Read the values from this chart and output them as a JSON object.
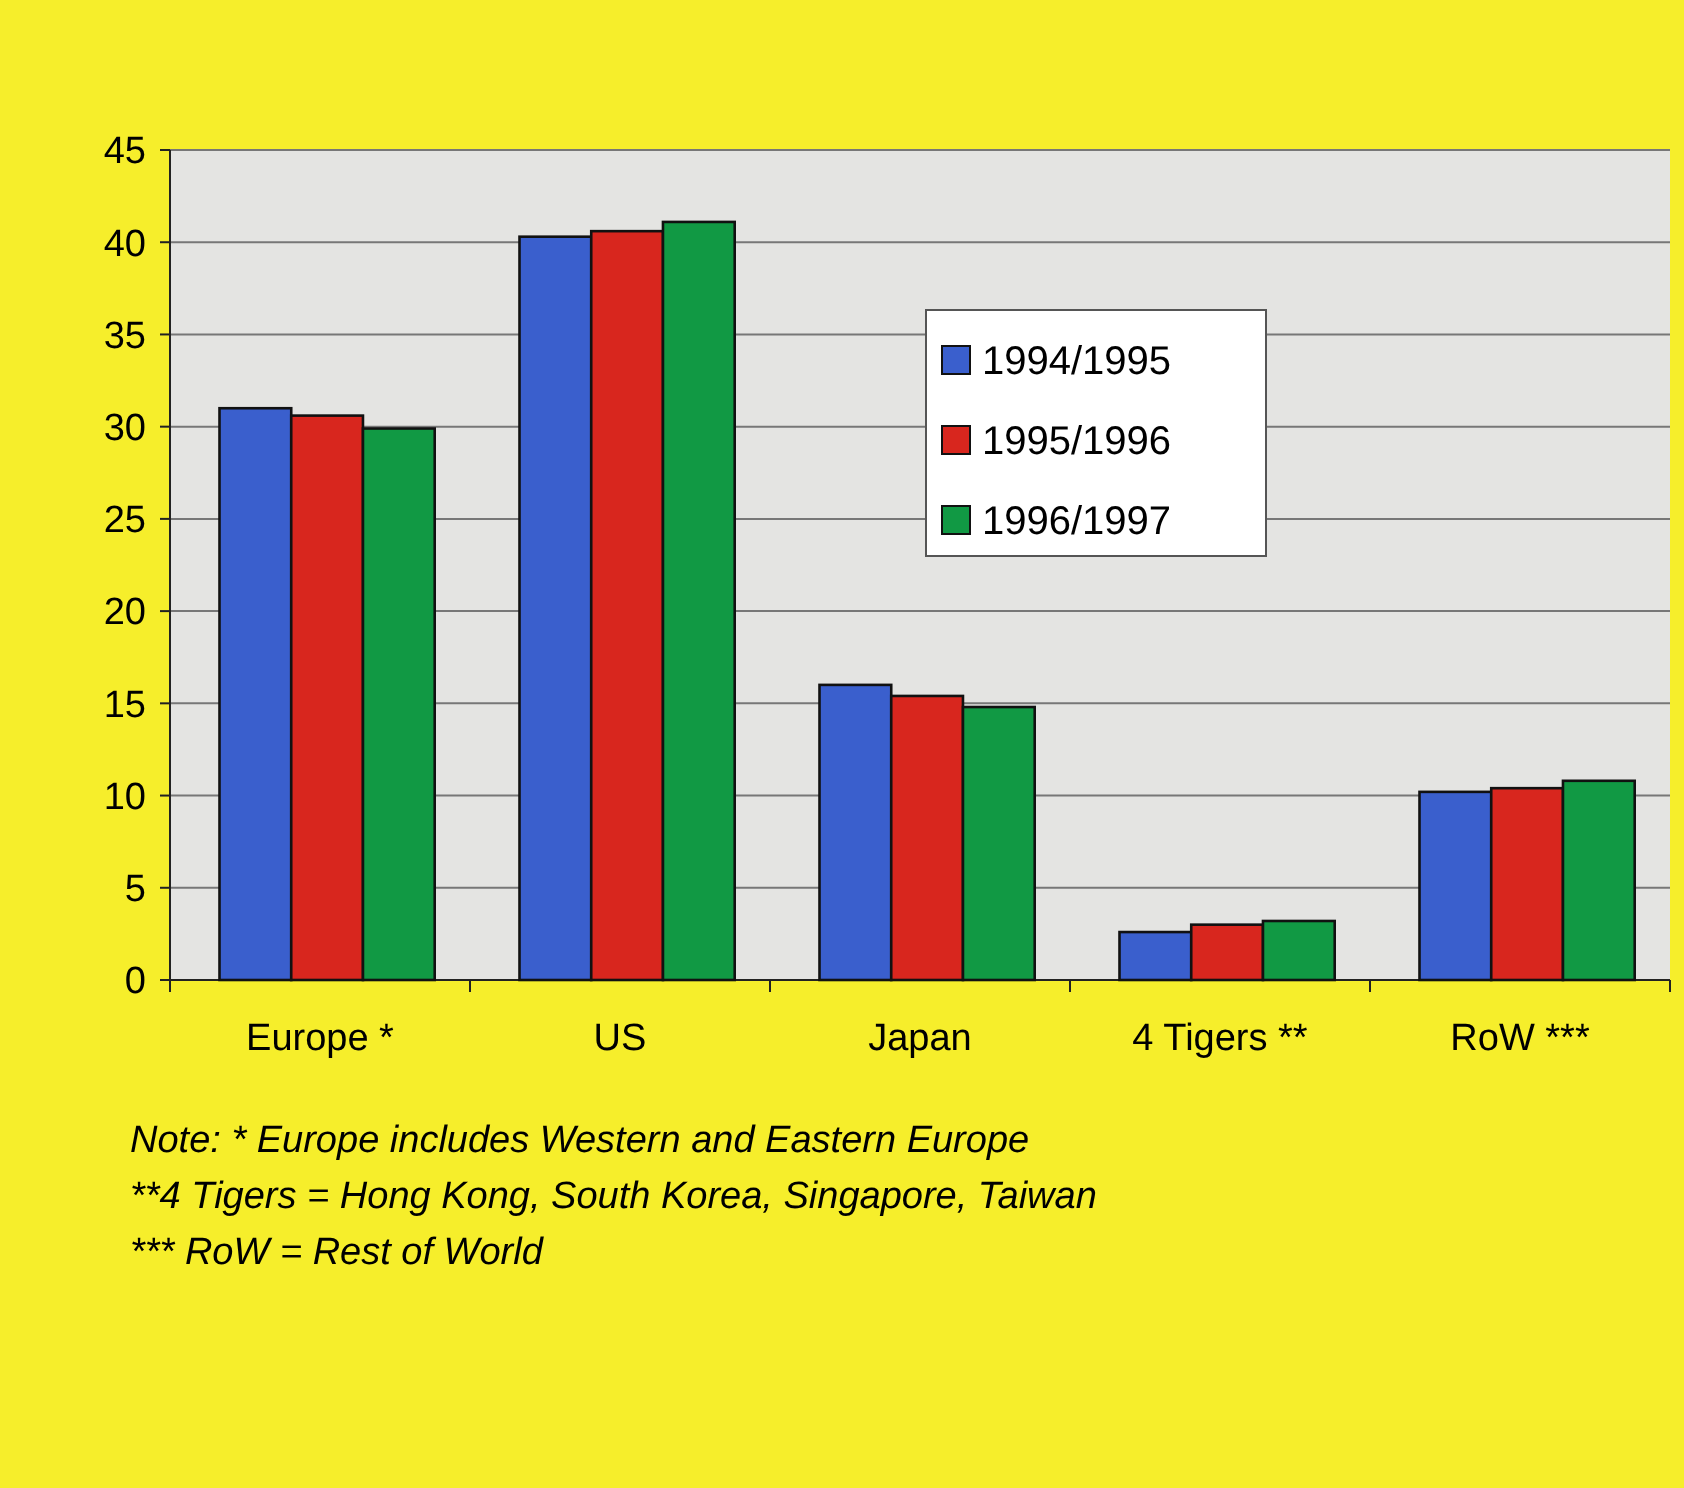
{
  "chart_data": {
    "type": "bar",
    "categories": [
      "Europe *",
      "US",
      "Japan",
      "4 Tigers **",
      "RoW ***"
    ],
    "series": [
      {
        "name": "1994/1995",
        "color": "#3a5fcd",
        "values": [
          31,
          40.3,
          16,
          2.6,
          10.2
        ]
      },
      {
        "name": "1995/1996",
        "color": "#d8261e",
        "values": [
          30.6,
          40.6,
          15.4,
          3,
          10.4
        ]
      },
      {
        "name": "1996/1997",
        "color": "#119944",
        "values": [
          29.9,
          41.1,
          14.8,
          3.2,
          10.8
        ]
      }
    ],
    "ylim": [
      0,
      45
    ],
    "yticks": [
      0,
      5,
      10,
      15,
      20,
      25,
      30,
      35,
      40,
      45
    ],
    "grid": "y",
    "legend": "top right",
    "annotations": [
      "Note: * Europe includes Western and Eastern Europe",
      "**4 Tigers = Hong Kong, South Korea, Singapore, Taiwan",
      "*** RoW = Rest of World"
    ]
  }
}
